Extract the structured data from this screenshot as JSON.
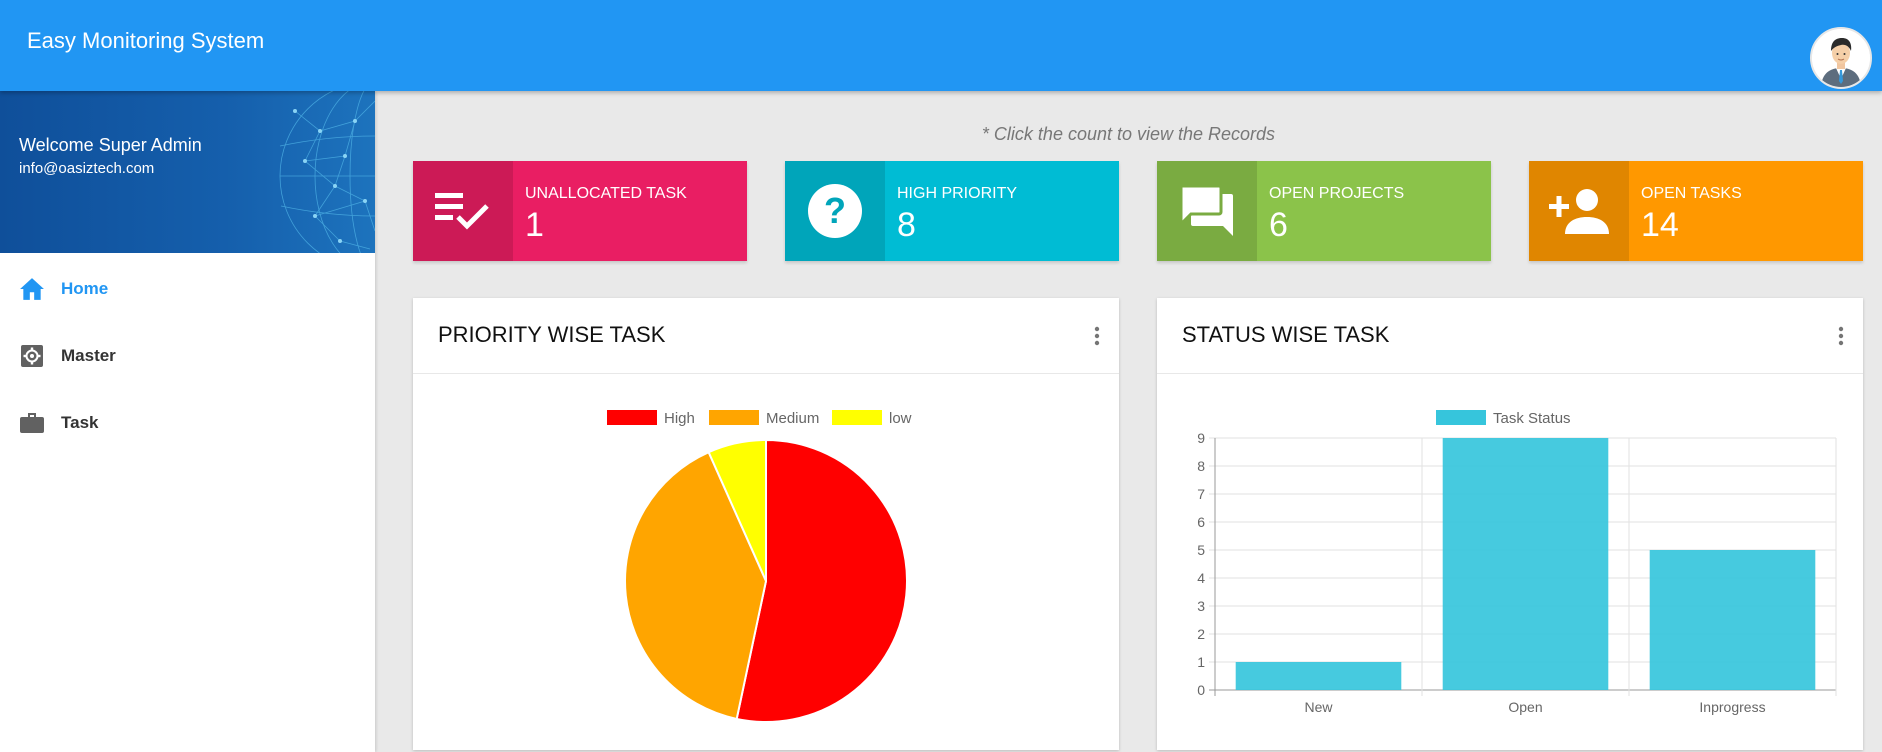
{
  "header": {
    "title": "Easy Monitoring System",
    "avatar_icon": "user-avatar-icon"
  },
  "sidebar": {
    "welcome": "Welcome Super Admin",
    "email": "info@oasiztech.com",
    "items": [
      {
        "label": "Home",
        "icon": "home-icon",
        "active": true
      },
      {
        "label": "Master",
        "icon": "gear-icon",
        "active": false
      },
      {
        "label": "Task",
        "icon": "briefcase-icon",
        "active": false
      }
    ]
  },
  "hint": "* Click the count to view the Records",
  "stats": [
    {
      "label": "UNALLOCATED TASK",
      "count": "1",
      "icon": "task-list-check-icon",
      "color": "#e91e63",
      "dark": "#cc1a56"
    },
    {
      "label": "HIGH PRIORITY",
      "count": "8",
      "icon": "question-circle-icon",
      "color": "#00bcd4",
      "dark": "#00a5ba"
    },
    {
      "label": "OPEN PROJECTS",
      "count": "6",
      "icon": "forum-icon",
      "color": "#8bc34a",
      "dark": "#7aab41"
    },
    {
      "label": "OPEN TASKS",
      "count": "14",
      "icon": "person-add-icon",
      "color": "#ff9800",
      "dark": "#e08600"
    }
  ],
  "panels": {
    "priority": {
      "title": "PRIORITY WISE TASK"
    },
    "status": {
      "title": "STATUS WISE TASK"
    }
  },
  "chart_data": [
    {
      "type": "pie",
      "categories": [
        "High",
        "Medium",
        "low"
      ],
      "values": [
        8,
        6,
        1
      ],
      "colors": [
        "#ff0000",
        "#ffa500",
        "#ffff00"
      ],
      "legend": "top"
    },
    {
      "type": "bar",
      "categories": [
        "New",
        "Open",
        "Inprogress"
      ],
      "series": [
        {
          "name": "Task Status",
          "values": [
            1,
            9,
            5
          ]
        }
      ],
      "color": "#36c5dc",
      "ylim": [
        0,
        9
      ],
      "yticks": [
        0,
        1,
        2,
        3,
        4,
        5,
        6,
        7,
        8,
        9
      ],
      "grid": true,
      "legend": "top"
    }
  ]
}
